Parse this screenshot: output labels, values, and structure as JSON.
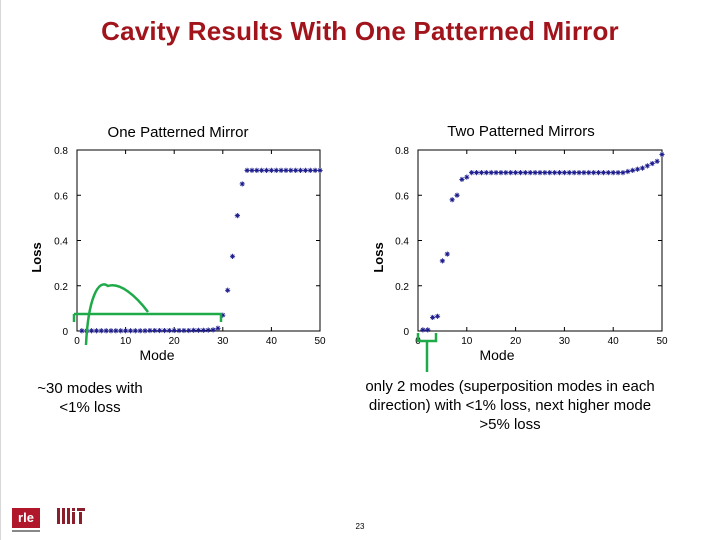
{
  "title": "Cavity Results With One Patterned Mirror",
  "caption_left": "~30 modes with <1% loss",
  "caption_right": "only 2 modes (superposition modes in each direction) with <1% loss, next higher mode >5% loss",
  "logo_text": "rle",
  "page_number": "23",
  "colors": {
    "title": "#a1141c",
    "marker": "#1a1a8c",
    "annotation": "#1faa4a",
    "logo": "#b0172a"
  },
  "chart_data": [
    {
      "type": "scatter",
      "title": "One Patterned Mirror",
      "xlabel": "Mode",
      "ylabel": "Loss",
      "xlim": [
        0,
        50
      ],
      "ylim": [
        0,
        0.8
      ],
      "xticks": [
        "0",
        "10",
        "20",
        "30",
        "40",
        "50"
      ],
      "yticks": [
        "0",
        "0.2",
        "0.4",
        "0.6",
        "0.8"
      ],
      "marker": "star",
      "series": [
        {
          "x": [
            1,
            2,
            3,
            4,
            5,
            6,
            7,
            8,
            9,
            10,
            11,
            12,
            13,
            14,
            15,
            16,
            17,
            18,
            19,
            20,
            21,
            22,
            23,
            24,
            25,
            26,
            27,
            28,
            29,
            30,
            31,
            32,
            33,
            34,
            35,
            36,
            37,
            38,
            39,
            40,
            41,
            42,
            43,
            44,
            45,
            46,
            47,
            48,
            49,
            50
          ],
          "y": [
            0.001,
            0.001,
            0.001,
            0.001,
            0.001,
            0.001,
            0.001,
            0.001,
            0.001,
            0.001,
            0.001,
            0.001,
            0.001,
            0.001,
            0.002,
            0.002,
            0.002,
            0.002,
            0.002,
            0.002,
            0.002,
            0.002,
            0.002,
            0.003,
            0.003,
            0.003,
            0.004,
            0.005,
            0.012,
            0.07,
            0.18,
            0.33,
            0.51,
            0.65,
            0.71,
            0.71,
            0.71,
            0.71,
            0.71,
            0.71,
            0.71,
            0.71,
            0.71,
            0.71,
            0.71,
            0.71,
            0.71,
            0.71,
            0.71,
            0.71
          ]
        }
      ]
    },
    {
      "type": "scatter",
      "title": "Two Patterned Mirrors",
      "xlabel": "Mode",
      "ylabel": "Loss",
      "xlim": [
        0,
        50
      ],
      "ylim": [
        0,
        0.8
      ],
      "xticks": [
        "0",
        "10",
        "20",
        "30",
        "40",
        "50"
      ],
      "yticks": [
        "0",
        "0.2",
        "0.4",
        "0.6",
        "0.8"
      ],
      "marker": "star",
      "series": [
        {
          "x": [
            1,
            2,
            3,
            4,
            5,
            6,
            7,
            8,
            9,
            10,
            11,
            12,
            13,
            14,
            15,
            16,
            17,
            18,
            19,
            20,
            21,
            22,
            23,
            24,
            25,
            26,
            27,
            28,
            29,
            30,
            31,
            32,
            33,
            34,
            35,
            36,
            37,
            38,
            39,
            40,
            41,
            42,
            43,
            44,
            45,
            46,
            47,
            48,
            49,
            50
          ],
          "y": [
            0.005,
            0.005,
            0.06,
            0.065,
            0.31,
            0.34,
            0.58,
            0.6,
            0.67,
            0.68,
            0.7,
            0.7,
            0.7,
            0.7,
            0.7,
            0.7,
            0.7,
            0.7,
            0.7,
            0.7,
            0.7,
            0.7,
            0.7,
            0.7,
            0.7,
            0.7,
            0.7,
            0.7,
            0.7,
            0.7,
            0.7,
            0.7,
            0.7,
            0.7,
            0.7,
            0.7,
            0.7,
            0.7,
            0.7,
            0.7,
            0.7,
            0.7,
            0.705,
            0.71,
            0.715,
            0.72,
            0.73,
            0.74,
            0.75,
            0.78
          ]
        }
      ]
    }
  ]
}
